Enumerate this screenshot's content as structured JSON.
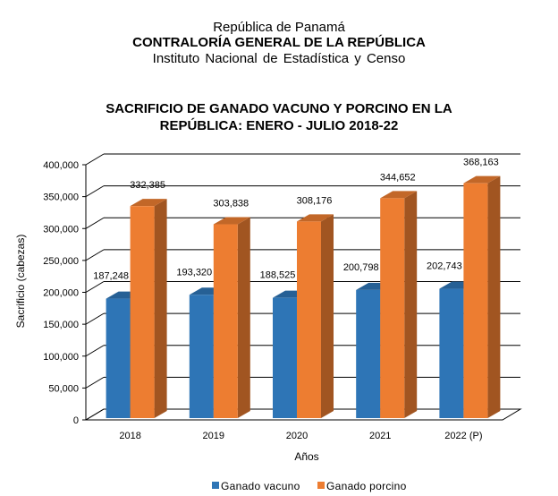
{
  "header": {
    "line1": "República de Panamá",
    "line2": "CONTRALORÍA GENERAL DE LA REPÚBLICA",
    "line3": "Instituto  Nacional  de Estadística  y  Censo"
  },
  "chart_data": {
    "type": "bar",
    "title_line1": "SACRIFICIO DE GANADO VACUNO Y PORCINO EN LA",
    "title_line2": "REPÚBLICA: ENERO - JULIO 2018-22",
    "title": "SACRIFICIO DE GANADO VACUNO Y PORCINO EN LA REPÚBLICA: ENERO - JULIO 2018-22",
    "xlabel": "Años",
    "ylabel": "Sacrificio  (cabezas)",
    "categories": [
      "2018",
      "2019",
      "2020",
      "2021",
      "2022 (P)"
    ],
    "series": [
      {
        "name": "Ganado vacuno",
        "color": "#2E75B6",
        "values": [
          187248,
          193320,
          188525,
          200798,
          202743
        ],
        "labels": [
          "187,248",
          "193,320",
          "188,525",
          "200,798",
          "202,743"
        ]
      },
      {
        "name": "Ganado porcino",
        "color": "#ED7D31",
        "values": [
          332385,
          303838,
          308176,
          344652,
          368163
        ],
        "labels": [
          "332,385",
          "303,838",
          "308,176",
          "344,652",
          "368,163"
        ]
      }
    ],
    "ylim": [
      0,
      400000
    ],
    "yticks": [
      0,
      50000,
      100000,
      150000,
      200000,
      250000,
      300000,
      350000,
      400000
    ],
    "ytick_labels": [
      "0",
      "50,000",
      "100,000",
      "150,000",
      "200,000",
      "250,000",
      "300,000",
      "350,000",
      "400,000"
    ],
    "grid": true,
    "legend_position": "bottom",
    "style": "3d-clustered-column"
  }
}
